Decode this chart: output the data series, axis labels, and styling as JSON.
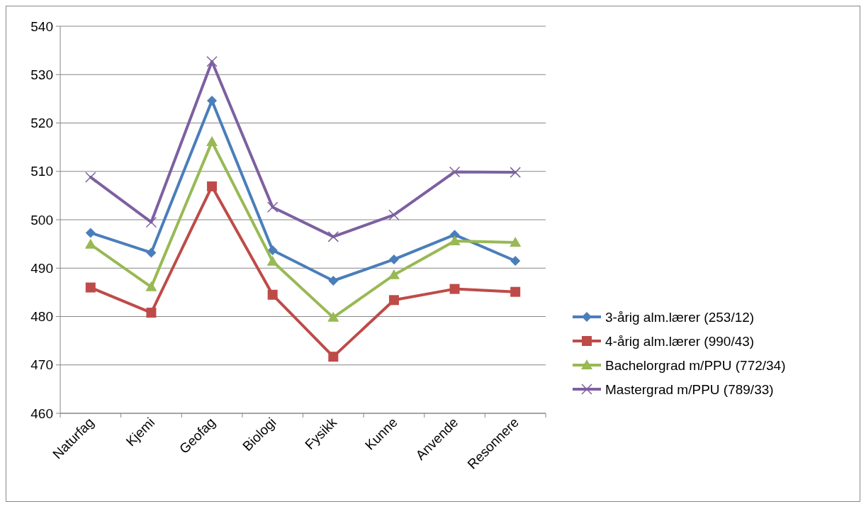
{
  "chart_data": {
    "type": "line",
    "categories": [
      "Naturfag",
      "Kjemi",
      "Geofag",
      "Biologi",
      "Fysikk",
      "Kunne",
      "Anvende",
      "Resonnere"
    ],
    "series": [
      {
        "name": "3-årig alm.lærer (253/12)",
        "color": "#4a7ebb",
        "marker": "diamond",
        "values": [
          497.3,
          493.2,
          524.6,
          493.7,
          487.4,
          491.8,
          496.9,
          491.5
        ]
      },
      {
        "name": "4-årig alm.lærer (990/43)",
        "color": "#be4b48",
        "marker": "square",
        "values": [
          486.0,
          480.8,
          506.9,
          484.5,
          471.7,
          483.4,
          485.7,
          485.1
        ]
      },
      {
        "name": "Bachelorgrad m/PPU (772/34)",
        "color": "#98b954",
        "marker": "triangle",
        "values": [
          494.9,
          486.1,
          516.1,
          491.4,
          479.8,
          488.6,
          495.6,
          495.3
        ]
      },
      {
        "name": "Mastergrad m/PPU (789/33)",
        "color": "#7d60a0",
        "marker": "cross",
        "values": [
          508.8,
          499.5,
          532.7,
          502.6,
          496.5,
          501.0,
          509.9,
          509.8
        ]
      }
    ],
    "ylim": [
      460,
      540
    ],
    "yticks": [
      460,
      470,
      480,
      490,
      500,
      510,
      520,
      530,
      540
    ],
    "grid": "y",
    "legend": "right",
    "line_style": "solid"
  }
}
